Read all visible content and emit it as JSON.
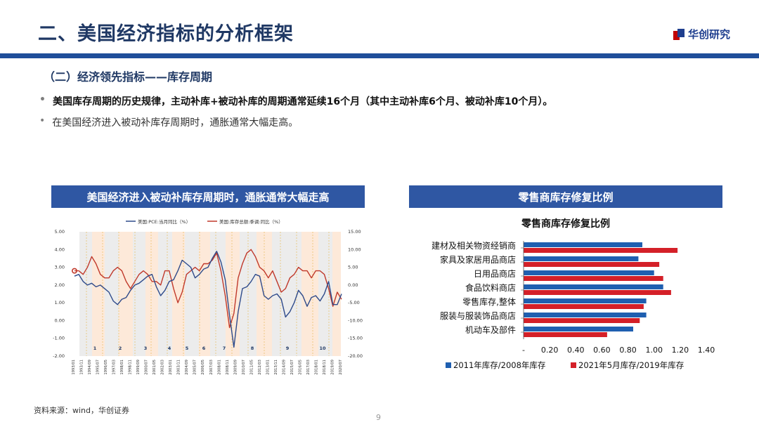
{
  "header": {
    "title": "二、美国经济指标的分析框架",
    "logo_text": "华创研究"
  },
  "section": {
    "title": "（二）经济领先指标——库存周期"
  },
  "bullets": [
    "美国库存周期的历史规律，主动补库+被动补库的周期通常延续16个月（其中主动补库6个月、被动补库10个月）。",
    "在美国经济进入被动补库存周期时，通胀通常大幅走高。"
  ],
  "colors": {
    "brand_blue": "#2f57a3",
    "title_blue": "#1f3864",
    "accent_red": "#c00000"
  },
  "footer": {
    "source": "资料来源：wind，华创证券",
    "page": "9"
  },
  "chart_data": [
    {
      "type": "line",
      "header": "美国经济进入被动补库存周期时，通胀通常大幅走高",
      "series": [
        {
          "name": "美国:PCE:当月同比（%）",
          "axis": "left",
          "color": "#2e4a8a",
          "values": [
            2.5,
            2.6,
            2.2,
            2.0,
            2.1,
            1.9,
            2.0,
            1.8,
            1.6,
            1.1,
            0.9,
            1.2,
            1.3,
            1.7,
            2.0,
            2.1,
            2.3,
            2.5,
            2.6,
            1.9,
            1.4,
            1.7,
            2.2,
            2.3,
            2.8,
            3.4,
            3.2,
            3.0,
            2.4,
            2.6,
            2.9,
            3.0,
            3.5,
            3.9,
            3.3,
            2.3,
            0.3,
            -1.5,
            0.5,
            1.8,
            1.9,
            2.2,
            2.6,
            2.5,
            1.4,
            1.2,
            1.4,
            1.5,
            1.2,
            0.2,
            0.5,
            1.0,
            1.7,
            1.4,
            0.8,
            1.3,
            1.4,
            1.1,
            1.5,
            2.2,
            0.9,
            0.9,
            1.5
          ]
        },
        {
          "name": "美国:库存总额:季调:同比（%）",
          "axis": "right",
          "color": "#c0392b",
          "values": [
            4,
            4,
            3,
            5,
            8,
            6,
            3,
            2,
            2,
            4,
            5,
            4,
            1,
            -1,
            1,
            3,
            4,
            3,
            1,
            1,
            0,
            4,
            4,
            -1,
            -5,
            -2,
            3,
            4,
            5,
            4,
            6,
            6,
            7,
            9,
            4,
            -3,
            -12,
            -8,
            2,
            6,
            9,
            10,
            8,
            5,
            4,
            2,
            4,
            1,
            -2,
            -1,
            2,
            3,
            5,
            4,
            4,
            2,
            4,
            4,
            3,
            -1,
            -6,
            -2,
            -4
          ]
        },
        {
          "name": "起点",
          "axis": "left",
          "color": "#c0392b",
          "values": [
            2.8
          ]
        }
      ],
      "y_left": {
        "ticks": [
          "5.00",
          "4.00",
          "3.00",
          "2.00",
          "1.00",
          "0.00",
          "-1.00",
          "-2.00"
        ],
        "ylim": [
          -2,
          5
        ]
      },
      "y_right": {
        "ticks": [
          "15.00",
          "10.00",
          "5.00",
          "0.00",
          "-5.00",
          "-10.00",
          "-15.00",
          "-20.00"
        ],
        "ylim": [
          -20,
          15
        ]
      },
      "x_ticks": [
        "1993/01",
        "1993/11",
        "1994/09",
        "1995/07",
        "1996/05",
        "1997/03",
        "1998/01",
        "1998/11",
        "1999/09",
        "2000/07",
        "2001/05",
        "2002/03",
        "2003/01",
        "2003/11",
        "2004/09",
        "2005/07",
        "2006/05",
        "2007/03",
        "2008/01",
        "2008/11",
        "2009/09",
        "2010/07",
        "2011/05",
        "2012/03",
        "2013/01",
        "2013/11",
        "2014/09",
        "2015/07",
        "2016/05",
        "2017/03",
        "2018/01",
        "2018/11",
        "2019/09",
        "2020/07"
      ],
      "cycle_labels": [
        "1",
        "2",
        "3",
        "4",
        "5",
        "6",
        "7",
        "8",
        "9",
        "10"
      ]
    },
    {
      "type": "bar",
      "orientation": "horizontal",
      "header": "零售商库存修复比例",
      "title": "零售商库存修复比例",
      "categories": [
        "建材及相关物资经销商",
        "家具及家居用品商店",
        "日用品商店",
        "食品饮料商店",
        "零售库存,整体",
        "服装与服装饰品商店",
        "机动车及部件"
      ],
      "series": [
        {
          "name": "2011年库存/2008年库存",
          "color": "#1f5fb0",
          "values": [
            0.91,
            0.88,
            1.0,
            1.07,
            0.94,
            0.94,
            0.84
          ]
        },
        {
          "name": "2021年5月库存/2019年库存",
          "color": "#d42028",
          "values": [
            1.18,
            1.04,
            1.07,
            1.13,
            0.92,
            0.89,
            0.64
          ]
        }
      ],
      "x_ticks": [
        "-",
        "0.20",
        "0.40",
        "0.60",
        "0.80",
        "1.00",
        "1.20",
        "1.40"
      ],
      "xlim": [
        0,
        1.4
      ],
      "legend": "bottom"
    }
  ]
}
